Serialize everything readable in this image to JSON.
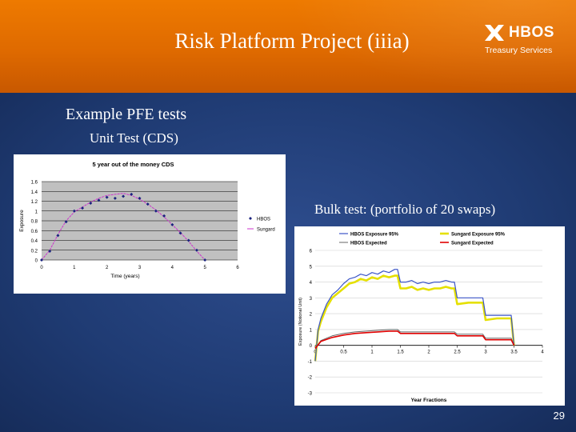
{
  "slide": {
    "title": "Risk Platform Project (iiia)",
    "heading": "Example PFE tests",
    "sub_heading": "Unit Test (CDS)",
    "bulk_label": "Bulk test: (portfolio of 20 swaps)",
    "page_number": "29"
  },
  "logo": {
    "name": "HBOS",
    "sub": "Treasury Services",
    "icon": "hbos-saltire-icon"
  },
  "colors": {
    "header_orange": "#e46f00",
    "body_navy": "#1f3b73",
    "series_navy": "#1a237e",
    "series_magenta": "#cc33cc",
    "series_blue": "#3b55c8",
    "series_yellow": "#e5e000",
    "series_grey": "#666666",
    "series_red": "#e00000"
  },
  "chart_data": [
    {
      "type": "line",
      "title": "5 year out of the money CDS",
      "xlabel": "Time (years)",
      "ylabel": "Exposure",
      "xlim": [
        0,
        6
      ],
      "ylim": [
        0,
        1.6
      ],
      "xticks": [
        "0",
        "1",
        "2",
        "3",
        "4",
        "5",
        "6"
      ],
      "yticks": [
        "0",
        "0.2",
        "0.4",
        "0.6",
        "0.8",
        "1",
        "1.2",
        "1.4",
        "1.6"
      ],
      "grid": true,
      "legend_position": "right",
      "series": [
        {
          "name": "HBOS",
          "style": "markers",
          "x": [
            0,
            0.25,
            0.5,
            0.75,
            1,
            1.25,
            1.5,
            1.75,
            2,
            2.25,
            2.5,
            2.75,
            3,
            3.25,
            3.5,
            3.75,
            4,
            4.25,
            4.5,
            4.75,
            5
          ],
          "y": [
            0,
            0.18,
            0.5,
            0.78,
            1.0,
            1.06,
            1.16,
            1.22,
            1.28,
            1.26,
            1.3,
            1.34,
            1.26,
            1.14,
            1.0,
            0.9,
            0.72,
            0.55,
            0.4,
            0.2,
            0
          ]
        },
        {
          "name": "Sungard",
          "style": "line",
          "x": [
            0,
            0.25,
            0.5,
            0.75,
            1,
            1.25,
            1.5,
            1.75,
            2,
            2.25,
            2.5,
            2.75,
            3,
            3.25,
            3.5,
            3.75,
            4,
            4.25,
            4.5,
            4.75,
            5
          ],
          "y": [
            0,
            0.2,
            0.52,
            0.8,
            0.98,
            1.08,
            1.18,
            1.26,
            1.32,
            1.34,
            1.36,
            1.32,
            1.24,
            1.14,
            1.02,
            0.88,
            0.72,
            0.56,
            0.38,
            0.18,
            0
          ]
        }
      ]
    },
    {
      "type": "line",
      "title": "",
      "xlabel": "Year Fractions",
      "ylabel": "Exposure (Notional Unit)",
      "xlim": [
        0,
        4
      ],
      "ylim": [
        -3,
        6
      ],
      "xticks": [
        "0",
        "0.5",
        "1",
        "1.5",
        "2",
        "2.5",
        "3",
        "3.5",
        "4"
      ],
      "yticks": [
        "-3",
        "-2",
        "-1",
        "0",
        "1",
        "2",
        "3",
        "4",
        "5",
        "6"
      ],
      "grid": true,
      "legend_position": "top",
      "series": [
        {
          "name": "HBOS Exposure 95%",
          "style": "line",
          "x": [
            0,
            0.05,
            0.1,
            0.2,
            0.3,
            0.4,
            0.5,
            0.6,
            0.7,
            0.8,
            0.9,
            1.0,
            1.1,
            1.2,
            1.3,
            1.4,
            1.45,
            1.5,
            1.6,
            1.7,
            1.8,
            1.9,
            2.0,
            2.1,
            2.2,
            2.3,
            2.4,
            2.45,
            2.5,
            2.7,
            2.95,
            3.0,
            3.2,
            3.45,
            3.5
          ],
          "y": [
            -1.0,
            1.0,
            1.7,
            2.6,
            3.2,
            3.5,
            3.9,
            4.2,
            4.3,
            4.5,
            4.4,
            4.6,
            4.5,
            4.7,
            4.6,
            4.8,
            4.8,
            4.0,
            4.0,
            4.1,
            3.9,
            4.0,
            3.9,
            4.0,
            4.0,
            4.1,
            4.0,
            4.0,
            3.0,
            3.0,
            3.0,
            1.9,
            1.9,
            1.9,
            0
          ]
        },
        {
          "name": "Sungard Exposure 95%",
          "style": "line",
          "x": [
            0,
            0.05,
            0.1,
            0.2,
            0.3,
            0.4,
            0.5,
            0.6,
            0.7,
            0.8,
            0.9,
            1.0,
            1.1,
            1.2,
            1.3,
            1.4,
            1.45,
            1.5,
            1.6,
            1.7,
            1.8,
            1.9,
            2.0,
            2.1,
            2.2,
            2.3,
            2.4,
            2.45,
            2.5,
            2.7,
            2.95,
            3.0,
            3.2,
            3.45,
            3.5
          ],
          "y": [
            -1.0,
            0.9,
            1.5,
            2.4,
            3.0,
            3.3,
            3.6,
            3.9,
            4.0,
            4.2,
            4.1,
            4.3,
            4.2,
            4.4,
            4.3,
            4.4,
            4.4,
            3.6,
            3.6,
            3.7,
            3.5,
            3.6,
            3.5,
            3.6,
            3.6,
            3.7,
            3.6,
            3.6,
            2.6,
            2.7,
            2.7,
            1.6,
            1.7,
            1.7,
            0
          ]
        },
        {
          "name": "HBOS Expected",
          "style": "line",
          "x": [
            0,
            0.1,
            0.3,
            0.5,
            0.7,
            0.9,
            1.1,
            1.3,
            1.45,
            1.5,
            1.8,
            2.1,
            2.45,
            2.5,
            2.95,
            3.0,
            3.45,
            3.5
          ],
          "y": [
            -0.2,
            0.3,
            0.6,
            0.75,
            0.85,
            0.9,
            0.95,
            1.0,
            1.0,
            0.85,
            0.85,
            0.85,
            0.85,
            0.7,
            0.7,
            0.45,
            0.45,
            0
          ]
        },
        {
          "name": "Sungard Expected",
          "style": "line",
          "x": [
            0,
            0.1,
            0.3,
            0.5,
            0.7,
            0.9,
            1.1,
            1.3,
            1.45,
            1.5,
            1.8,
            2.1,
            2.45,
            2.5,
            2.95,
            3.0,
            3.45,
            3.5
          ],
          "y": [
            -0.2,
            0.25,
            0.5,
            0.65,
            0.75,
            0.8,
            0.85,
            0.9,
            0.9,
            0.75,
            0.75,
            0.75,
            0.75,
            0.6,
            0.6,
            0.35,
            0.35,
            0
          ]
        }
      ]
    }
  ]
}
